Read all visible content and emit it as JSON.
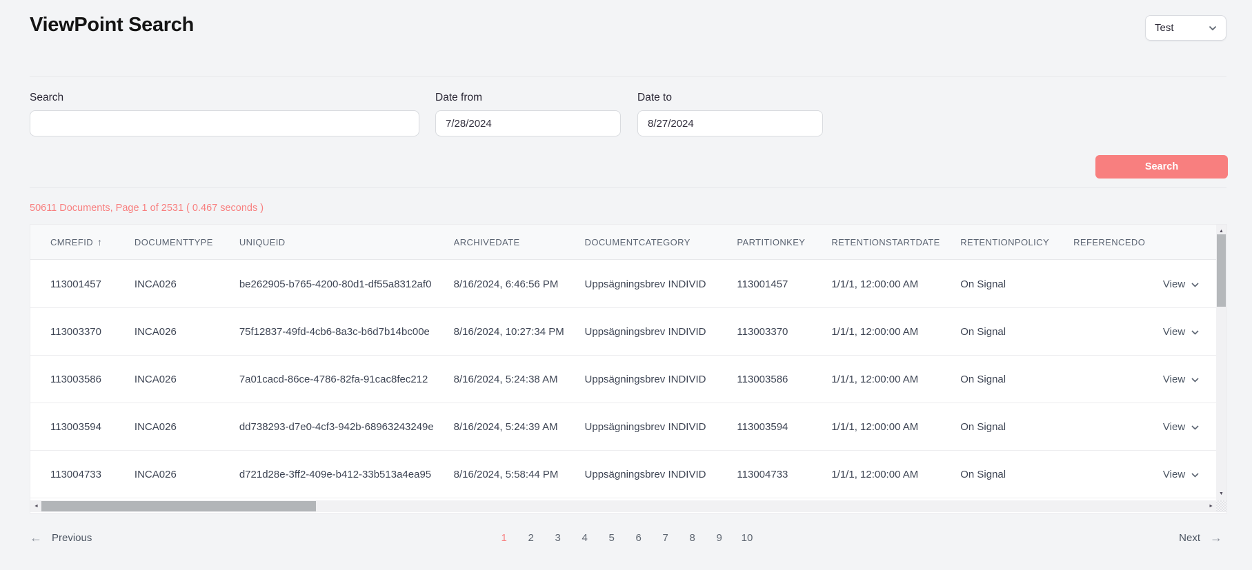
{
  "header": {
    "title": "ViewPoint Search",
    "environment": {
      "value": "Test"
    }
  },
  "form": {
    "search": {
      "label": "Search",
      "value": "",
      "placeholder": ""
    },
    "date_from": {
      "label": "Date from",
      "value": "7/28/2024"
    },
    "date_to": {
      "label": "Date to",
      "value": "8/27/2024"
    },
    "submit_label": "Search"
  },
  "results": {
    "status_text": "50611 Documents, Page 1 of 2531 ( 0.467 seconds )",
    "table": {
      "columns": [
        {
          "key": "cmrefid",
          "label": "CMREFID",
          "sorted": "asc"
        },
        {
          "key": "documenttype",
          "label": "DOCUMENTTYPE"
        },
        {
          "key": "uniqueid",
          "label": "UNIQUEID"
        },
        {
          "key": "archivedate",
          "label": "ARCHIVEDATE"
        },
        {
          "key": "documentcategory",
          "label": "DOCUMENTCATEGORY"
        },
        {
          "key": "partitionkey",
          "label": "PARTITIONKEY"
        },
        {
          "key": "retentionstartdate",
          "label": "RETENTIONSTARTDATE"
        },
        {
          "key": "retentionpolicy",
          "label": "RETENTIONPOLICY"
        },
        {
          "key": "referenced",
          "label": "REFERENCEDO"
        }
      ],
      "row_action": "View",
      "rows": [
        {
          "cmrefid": "113001457",
          "documenttype": "INCA026",
          "uniqueid": "be262905-b765-4200-80d1-df55a8312af0",
          "archivedate": "8/16/2024, 6:46:56 PM",
          "documentcategory": "Uppsägningsbrev INDIVID",
          "partitionkey": "113001457",
          "retentionstartdate": "1/1/1, 12:00:00 AM",
          "retentionpolicy": "On Signal",
          "referenced": ""
        },
        {
          "cmrefid": "113003370",
          "documenttype": "INCA026",
          "uniqueid": "75f12837-49fd-4cb6-8a3c-b6d7b14bc00e",
          "archivedate": "8/16/2024, 10:27:34 PM",
          "documentcategory": "Uppsägningsbrev INDIVID",
          "partitionkey": "113003370",
          "retentionstartdate": "1/1/1, 12:00:00 AM",
          "retentionpolicy": "On Signal",
          "referenced": ""
        },
        {
          "cmrefid": "113003586",
          "documenttype": "INCA026",
          "uniqueid": "7a01cacd-86ce-4786-82fa-91cac8fec212",
          "archivedate": "8/16/2024, 5:24:38 AM",
          "documentcategory": "Uppsägningsbrev INDIVID",
          "partitionkey": "113003586",
          "retentionstartdate": "1/1/1, 12:00:00 AM",
          "retentionpolicy": "On Signal",
          "referenced": ""
        },
        {
          "cmrefid": "113003594",
          "documenttype": "INCA026",
          "uniqueid": "dd738293-d7e0-4cf3-942b-68963243249e",
          "archivedate": "8/16/2024, 5:24:39 AM",
          "documentcategory": "Uppsägningsbrev INDIVID",
          "partitionkey": "113003594",
          "retentionstartdate": "1/1/1, 12:00:00 AM",
          "retentionpolicy": "On Signal",
          "referenced": ""
        },
        {
          "cmrefid": "113004733",
          "documenttype": "INCA026",
          "uniqueid": "d721d28e-3ff2-409e-b412-33b513a4ea95",
          "archivedate": "8/16/2024, 5:58:44 PM",
          "documentcategory": "Uppsägningsbrev INDIVID",
          "partitionkey": "113004733",
          "retentionstartdate": "1/1/1, 12:00:00 AM",
          "retentionpolicy": "On Signal",
          "referenced": ""
        }
      ]
    }
  },
  "pagination": {
    "previous_label": "Previous",
    "next_label": "Next",
    "pages": [
      "1",
      "2",
      "3",
      "4",
      "5",
      "6",
      "7",
      "8",
      "9",
      "10"
    ],
    "current_page": "1"
  },
  "icons": {
    "sort_asc": "↑",
    "arrow_left": "←",
    "arrow_right": "→",
    "scroll_up": "▲",
    "scroll_down": "▼",
    "scroll_left": "◄",
    "scroll_right": "►"
  },
  "colors": {
    "accent": "#f87f7f",
    "page_background": "#f3f4f6",
    "table_header_background": "#f8f9fa"
  }
}
